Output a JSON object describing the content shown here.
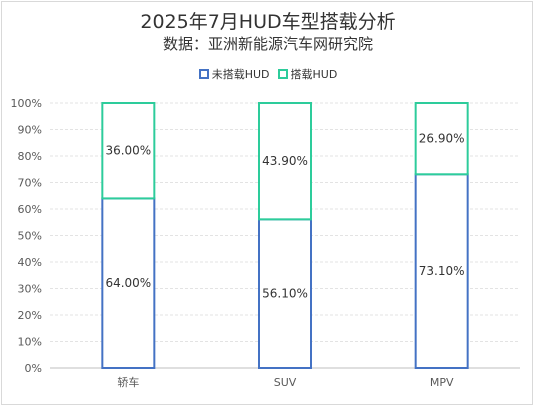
{
  "chart_data": {
    "type": "bar",
    "stacked": true,
    "percent": true,
    "title": "2025年7月HUD车型搭载分析",
    "subtitle": "数据：亚洲新能源汽车网研究院",
    "categories": [
      "轿车",
      "SUV",
      "MPV"
    ],
    "series": [
      {
        "name": "未搭载HUD",
        "values": [
          64.0,
          56.1,
          73.1
        ],
        "labels": [
          "64.00%",
          "56.10%",
          "73.10%"
        ],
        "color": "#4472c4"
      },
      {
        "name": "搭载HUD",
        "values": [
          36.0,
          43.9,
          26.9
        ],
        "labels": [
          "36.00%",
          "43.90%",
          "26.90%"
        ],
        "color": "#2dcc9b"
      }
    ],
    "ylim": [
      0,
      100
    ],
    "yticks": [
      "0%",
      "10%",
      "20%",
      "30%",
      "40%",
      "50%",
      "60%",
      "70%",
      "80%",
      "90%",
      "100%"
    ],
    "legend_position": "top",
    "grid": true
  }
}
